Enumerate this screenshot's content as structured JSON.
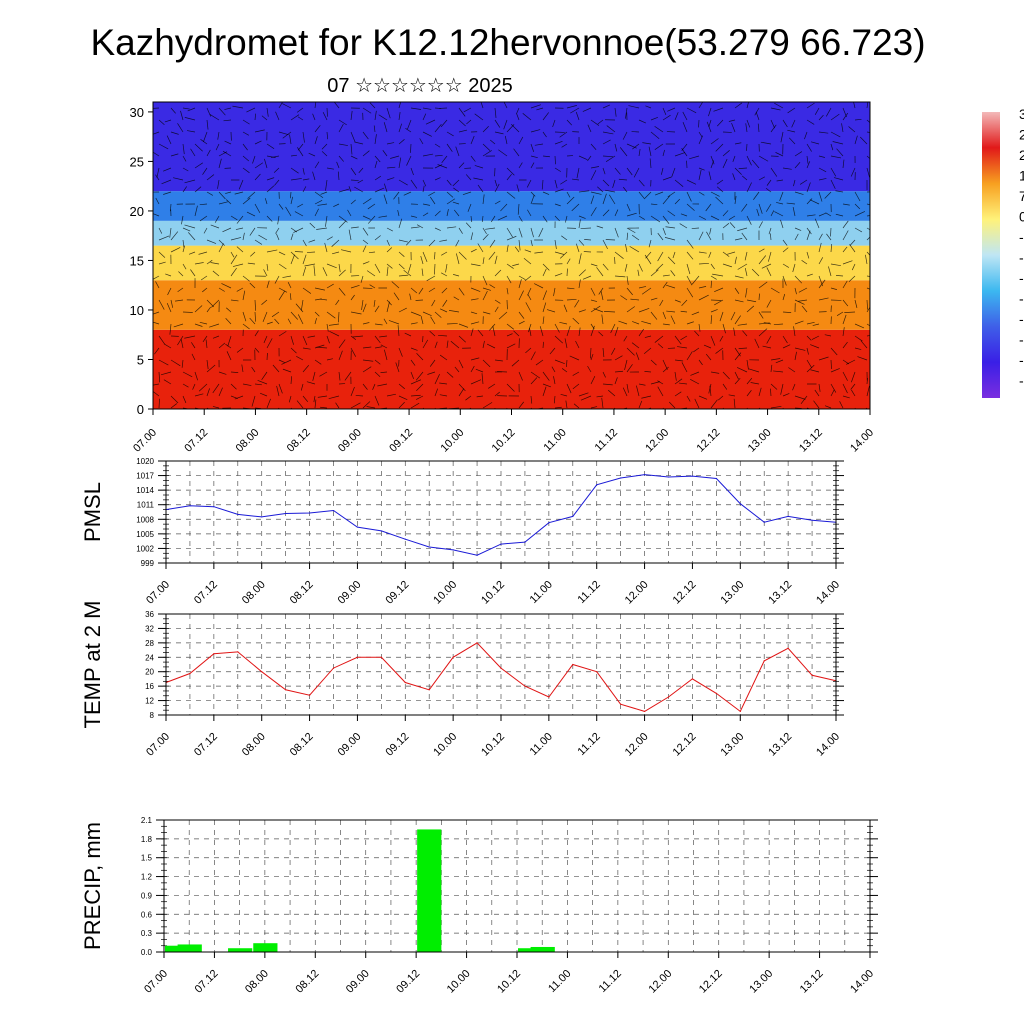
{
  "title": "Kazhydromet for K12.12hervonnoe(53.279 66.723)",
  "subtitle": "07 ☆☆☆☆☆☆ 2025",
  "time_ticks": [
    "07.00",
    "07.12",
    "08.00",
    "08.12",
    "09.00",
    "09.12",
    "10.00",
    "10.12",
    "11.00",
    "11.12",
    "12.00",
    "12.12",
    "13.00",
    "13.12",
    "14.00"
  ],
  "colorbar": {
    "labels": [
      "3",
      "2",
      "2",
      "1",
      "7",
      "0",
      "-",
      "-",
      "-",
      "-",
      "-",
      "-",
      "-",
      "-"
    ],
    "colors": [
      "#f3b9b9",
      "#e11919",
      "#f7a020",
      "#fff27a",
      "#bfe6f4",
      "#3cb8f0",
      "#3f5fe8",
      "#3a1fe6",
      "#7a2ee0"
    ]
  },
  "chart_data": [
    {
      "type": "heatmap",
      "name": "vertical-section",
      "yticks": [
        0,
        5,
        10,
        15,
        20,
        25,
        30
      ],
      "ylim": [
        0,
        31
      ],
      "xlim": [
        0,
        14
      ],
      "color_bands": [
        {
          "from": 0,
          "to": 8,
          "color": "#e8220c"
        },
        {
          "from": 8,
          "to": 13,
          "color": "#f58a12"
        },
        {
          "from": 13,
          "to": 16.5,
          "color": "#fcd84a"
        },
        {
          "from": 16.5,
          "to": 19,
          "color": "#8fd0ef"
        },
        {
          "from": 19,
          "to": 22,
          "color": "#2f7fe8"
        },
        {
          "from": 22,
          "to": 31,
          "color": "#3a2ae4"
        }
      ]
    },
    {
      "type": "line",
      "ylabel": "PMSL",
      "yticks": [
        999,
        1002,
        1005,
        1008,
        1011,
        1014,
        1017,
        1020
      ],
      "ylim": [
        999,
        1020
      ],
      "color": "#1a1ad6",
      "x": [
        0,
        0.5,
        1,
        1.5,
        2,
        2.5,
        3,
        3.5,
        4,
        4.5,
        5,
        5.5,
        6,
        6.5,
        7,
        7.5,
        8,
        8.5,
        9,
        9.5,
        10,
        10.5,
        11,
        11.5,
        12,
        12.5,
        13,
        13.5,
        14
      ],
      "values": [
        1010.0,
        1010.8,
        1010.6,
        1009.0,
        1008.5,
        1009.2,
        1009.3,
        1009.8,
        1006.4,
        1005.6,
        1003.9,
        1002.3,
        1001.7,
        1000.6,
        1002.9,
        1003.3,
        1007.3,
        1008.6,
        1015.1,
        1016.5,
        1017.2,
        1016.7,
        1016.9,
        1016.4,
        1011.2,
        1007.4,
        1008.6,
        1007.8,
        1007.4
      ]
    },
    {
      "type": "line",
      "ylabel": "TEMP at 2 M",
      "yticks": [
        8,
        12,
        16,
        20,
        24,
        28,
        32,
        36
      ],
      "ylim": [
        8,
        36
      ],
      "color": "#e01414",
      "x": [
        0,
        0.5,
        1,
        1.5,
        2,
        2.5,
        3,
        3.5,
        4,
        4.5,
        5,
        5.5,
        6,
        6.5,
        7,
        7.5,
        8,
        8.5,
        9,
        9.5,
        10,
        10.5,
        11,
        11.5,
        12,
        12.5,
        13,
        13.5,
        14
      ],
      "values": [
        17,
        19.5,
        25,
        25.5,
        20,
        15,
        13.5,
        21,
        24,
        24,
        17,
        15,
        24,
        28,
        21,
        16,
        13,
        22,
        20,
        11,
        9,
        13,
        18,
        14,
        9,
        23,
        26.5,
        19,
        17.5
      ]
    },
    {
      "type": "bar",
      "ylabel": "PRECIP, mm",
      "yticks": [
        0.0,
        0.3,
        0.6,
        0.9,
        1.2,
        1.5,
        1.8,
        2.1
      ],
      "ylim": [
        0,
        2.1
      ],
      "color": "#00ee00",
      "x": [
        0.0,
        0.25,
        1.25,
        1.75,
        5.0,
        7.0,
        7.25
      ],
      "values": [
        0.1,
        0.12,
        0.06,
        0.14,
        1.95,
        0.06,
        0.08
      ]
    }
  ]
}
